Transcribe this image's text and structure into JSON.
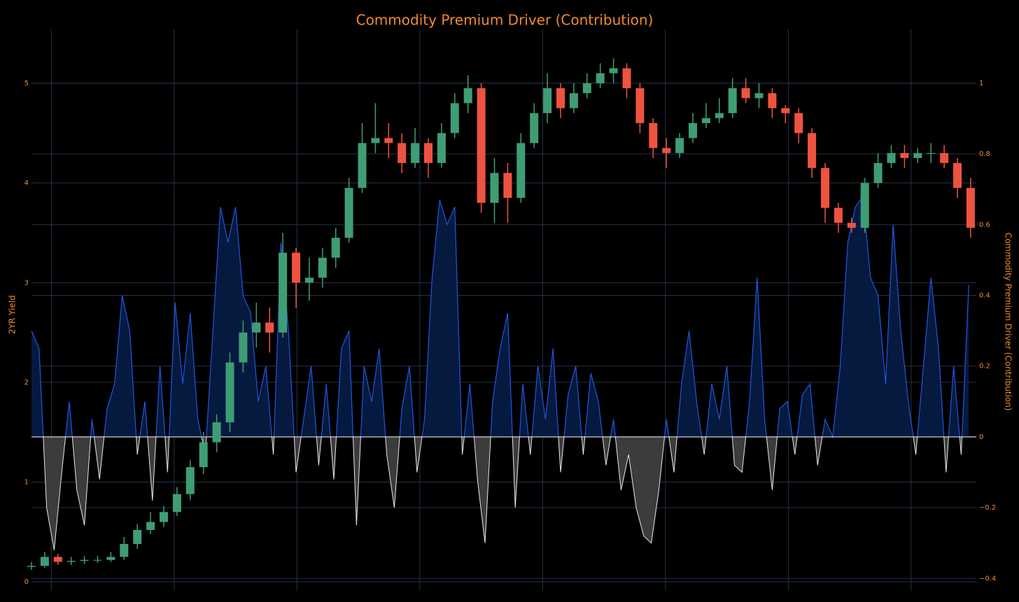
{
  "chart_data": {
    "type": "candlestick",
    "title": "Commodity Premium Driver (Contribution)",
    "ylabel": "2YR Yield",
    "y2label": "Commodity Premium Driver (Contribution)",
    "grid": true,
    "xlim": [
      0,
      1000
    ],
    "xticks": [
      21,
      151,
      281,
      411,
      541,
      671,
      801,
      931
    ],
    "ylim": [
      -0.09,
      5.54
    ],
    "yticks": [
      0,
      1,
      2,
      3,
      4,
      5
    ],
    "y2lim": [
      -0.435,
      1.152
    ],
    "y2ticks": [
      {
        "value": -0.4,
        "label": "−0.4"
      },
      {
        "value": -0.2,
        "label": "−0.2"
      },
      0,
      0.2,
      0.4,
      0.6,
      0.8,
      1
    ],
    "up_color": "#3f9d74",
    "down_color": "#ee5340",
    "x": [
      0,
      14,
      28,
      42,
      56,
      70,
      84,
      98,
      112,
      126,
      140,
      154,
      168,
      182,
      196,
      210,
      224,
      238,
      252,
      266,
      280,
      294,
      308,
      322,
      336,
      350,
      364,
      378,
      392,
      406,
      420,
      434,
      448,
      462,
      476,
      490,
      504,
      518,
      532,
      546,
      560,
      574,
      588,
      602,
      616,
      630,
      644,
      658,
      672,
      686,
      700,
      714,
      728,
      742,
      756,
      770,
      784,
      798,
      812,
      826,
      840,
      854,
      868,
      882,
      896,
      910,
      924,
      938,
      952,
      966,
      980,
      994
    ],
    "open": [
      0.15,
      0.16,
      0.25,
      0.2,
      0.21,
      0.22,
      0.22,
      0.25,
      0.38,
      0.52,
      0.6,
      0.7,
      0.88,
      1.15,
      1.4,
      1.6,
      2.2,
      2.5,
      2.6,
      2.5,
      3.3,
      3.0,
      3.05,
      3.25,
      3.45,
      3.95,
      4.4,
      4.45,
      4.4,
      4.2,
      4.4,
      4.2,
      4.5,
      4.8,
      4.95,
      3.8,
      4.1,
      3.85,
      4.4,
      4.7,
      4.95,
      4.75,
      4.9,
      5.0,
      5.1,
      5.15,
      4.95,
      4.6,
      4.35,
      4.3,
      4.45,
      4.6,
      4.65,
      4.7,
      4.95,
      4.85,
      4.9,
      4.75,
      4.7,
      4.5,
      4.15,
      3.75,
      3.6,
      3.55,
      4.0,
      4.2,
      4.3,
      4.25,
      4.3,
      4.3,
      4.2,
      3.95
    ],
    "high": [
      0.2,
      0.3,
      0.28,
      0.25,
      0.26,
      0.26,
      0.3,
      0.45,
      0.58,
      0.7,
      0.76,
      0.95,
      1.22,
      1.5,
      1.68,
      2.3,
      2.62,
      2.8,
      2.75,
      3.5,
      3.35,
      3.25,
      3.35,
      3.55,
      4.05,
      4.6,
      4.8,
      4.6,
      4.5,
      4.55,
      4.45,
      4.6,
      4.9,
      5.08,
      5.0,
      4.25,
      4.2,
      4.5,
      4.8,
      5.1,
      5.0,
      5.0,
      5.1,
      5.2,
      5.25,
      5.2,
      5.0,
      4.65,
      4.45,
      4.5,
      4.7,
      4.8,
      4.85,
      5.05,
      5.05,
      5.0,
      4.95,
      4.78,
      4.75,
      4.55,
      4.2,
      3.8,
      3.65,
      4.05,
      4.3,
      4.38,
      4.38,
      4.35,
      4.4,
      4.38,
      4.25,
      4.05
    ],
    "low": [
      0.12,
      0.14,
      0.17,
      0.17,
      0.18,
      0.19,
      0.2,
      0.22,
      0.33,
      0.48,
      0.55,
      0.66,
      0.82,
      1.08,
      1.3,
      1.5,
      2.1,
      2.35,
      2.3,
      2.45,
      2.75,
      2.82,
      2.95,
      3.15,
      3.4,
      3.9,
      4.3,
      4.25,
      4.1,
      4.15,
      4.05,
      4.15,
      4.45,
      4.7,
      3.7,
      3.6,
      3.6,
      3.8,
      4.35,
      4.6,
      4.65,
      4.7,
      4.85,
      4.95,
      5.0,
      4.85,
      4.5,
      4.25,
      4.15,
      4.25,
      4.4,
      4.55,
      4.6,
      4.65,
      4.8,
      4.75,
      4.65,
      4.6,
      4.4,
      4.05,
      3.6,
      3.5,
      3.5,
      3.5,
      3.95,
      4.15,
      4.15,
      4.2,
      4.2,
      4.15,
      3.85,
      3.45
    ],
    "close": [
      0.16,
      0.25,
      0.2,
      0.21,
      0.22,
      0.22,
      0.25,
      0.38,
      0.52,
      0.6,
      0.7,
      0.88,
      1.15,
      1.4,
      1.6,
      2.2,
      2.5,
      2.6,
      2.5,
      3.3,
      3.0,
      3.05,
      3.25,
      3.45,
      3.95,
      4.4,
      4.45,
      4.4,
      4.2,
      4.4,
      4.2,
      4.5,
      4.8,
      4.95,
      3.8,
      4.1,
      3.85,
      4.4,
      4.7,
      4.95,
      4.75,
      4.9,
      5.0,
      5.1,
      5.15,
      4.95,
      4.6,
      4.35,
      4.3,
      4.45,
      4.6,
      4.65,
      4.7,
      4.95,
      4.85,
      4.9,
      4.75,
      4.7,
      4.5,
      4.15,
      3.75,
      3.6,
      3.55,
      4.0,
      4.2,
      4.3,
      4.25,
      4.3,
      4.3,
      4.2,
      3.95,
      3.55
    ],
    "overlay": {
      "type": "area",
      "axis": "y2",
      "color": "#2255e0",
      "fill": "#061a40",
      "negative_color": "#e8e8e8",
      "negative_fill": "#3c3c3c",
      "x": [
        0,
        8,
        16,
        24,
        32,
        40,
        48,
        56,
        64,
        72,
        80,
        88,
        96,
        104,
        112,
        120,
        128,
        136,
        144,
        152,
        160,
        168,
        176,
        184,
        192,
        200,
        208,
        216,
        224,
        232,
        240,
        248,
        256,
        264,
        272,
        280,
        288,
        296,
        304,
        312,
        320,
        328,
        336,
        344,
        352,
        360,
        368,
        376,
        384,
        392,
        400,
        408,
        416,
        424,
        432,
        440,
        448,
        456,
        464,
        472,
        480,
        488,
        496,
        504,
        512,
        520,
        528,
        536,
        544,
        552,
        560,
        568,
        576,
        584,
        592,
        600,
        608,
        616,
        624,
        632,
        640,
        648,
        656,
        664,
        672,
        680,
        688,
        696,
        704,
        712,
        720,
        728,
        736,
        744,
        752,
        760,
        768,
        776,
        784,
        792,
        800,
        808,
        816,
        824,
        832,
        840,
        848,
        856,
        864,
        872,
        880,
        888,
        896,
        904,
        912,
        920,
        928,
        936,
        944,
        952,
        960,
        968,
        976,
        984,
        992
      ],
      "values": [
        0.3,
        0.25,
        -0.2,
        -0.32,
        -0.1,
        0.1,
        -0.15,
        -0.25,
        0.05,
        -0.12,
        0.08,
        0.15,
        0.4,
        0.3,
        -0.05,
        0.1,
        -0.18,
        0.2,
        -0.1,
        0.38,
        0.15,
        0.35,
        0.05,
        -0.05,
        0.3,
        0.65,
        0.55,
        0.65,
        0.4,
        0.35,
        0.1,
        0.2,
        -0.05,
        0.55,
        0.3,
        -0.1,
        0.05,
        0.2,
        -0.08,
        0.15,
        -0.12,
        0.25,
        0.3,
        -0.25,
        0.2,
        0.1,
        0.25,
        -0.05,
        -0.2,
        0.08,
        0.2,
        -0.1,
        0.05,
        0.45,
        0.67,
        0.6,
        0.65,
        -0.05,
        0.15,
        -0.12,
        -0.3,
        0.1,
        0.25,
        0.35,
        -0.2,
        0.15,
        -0.05,
        0.2,
        0.05,
        0.25,
        -0.1,
        0.12,
        0.2,
        -0.05,
        0.18,
        0.1,
        -0.08,
        0.05,
        -0.15,
        -0.05,
        -0.2,
        -0.28,
        -0.3,
        -0.15,
        0.05,
        -0.1,
        0.15,
        0.3,
        0.1,
        -0.05,
        0.15,
        0.05,
        0.2,
        -0.08,
        -0.1,
        0.1,
        0.45,
        0.05,
        -0.15,
        0.08,
        0.1,
        -0.05,
        0.12,
        0.15,
        -0.08,
        0.05,
        0.0,
        0.2,
        0.55,
        0.65,
        0.68,
        0.45,
        0.4,
        0.15,
        0.6,
        0.3,
        0.1,
        -0.05,
        0.2,
        0.45,
        0.25,
        -0.1,
        0.2,
        -0.05,
        0.43
      ]
    }
  }
}
